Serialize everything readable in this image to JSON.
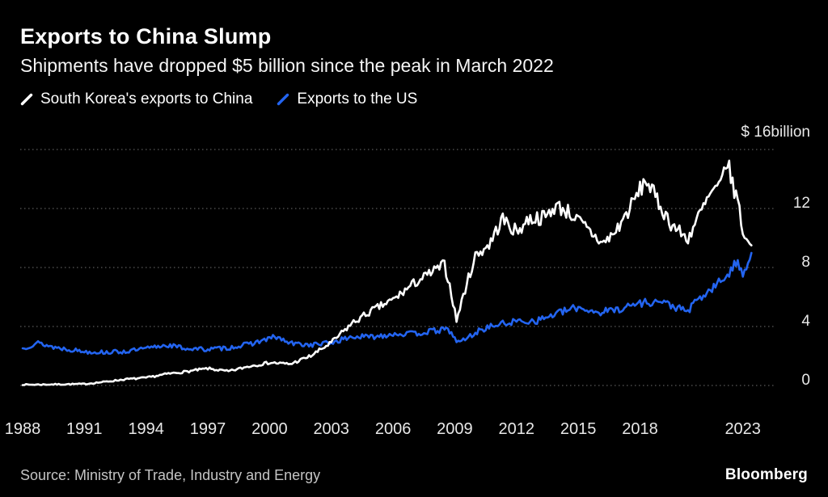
{
  "header": {
    "title": "Exports to China Slump",
    "subtitle": "Shipments have dropped $5 billion since the peak in March 2022"
  },
  "legend": [
    {
      "label": "South Korea's exports to China",
      "color": "#ffffff"
    },
    {
      "label": "Exports to the US",
      "color": "#2364f0"
    }
  ],
  "footer": {
    "source": "Source: Ministry of Trade, Industry and Energy",
    "brand": "Bloomberg"
  },
  "chart_data": {
    "type": "line",
    "title": "Exports to China Slump",
    "subtitle": "Shipments have dropped $5 billion since the peak in March 2022",
    "unit": "$ billion",
    "y_axis_side": "right",
    "grid": "dotted-horizontal",
    "legend_position": "top-left",
    "background": "#000000",
    "ylim": [
      0,
      16
    ],
    "x_range": [
      1988,
      2023.6
    ],
    "y_ticks": [
      {
        "value": 16,
        "label": "$ 16billion"
      },
      {
        "value": 12,
        "label": "12"
      },
      {
        "value": 8,
        "label": "8"
      },
      {
        "value": 4,
        "label": "4"
      },
      {
        "value": 0,
        "label": "0"
      }
    ],
    "x_ticks": [
      {
        "value": 1988,
        "label": "1988"
      },
      {
        "value": 1991,
        "label": "1991"
      },
      {
        "value": 1994,
        "label": "1994"
      },
      {
        "value": 1997,
        "label": "1997"
      },
      {
        "value": 2000,
        "label": "2000"
      },
      {
        "value": 2003,
        "label": "2003"
      },
      {
        "value": 2006,
        "label": "2006"
      },
      {
        "value": 2009,
        "label": "2009"
      },
      {
        "value": 2012,
        "label": "2012"
      },
      {
        "value": 2015,
        "label": "2015"
      },
      {
        "value": 2018,
        "label": "2018"
      },
      {
        "value": 2023,
        "label": "2023"
      }
    ],
    "series": [
      {
        "name": "South Korea's exports to China",
        "color": "#ffffff",
        "points": [
          [
            1988,
            0.05
          ],
          [
            1990,
            0.08
          ],
          [
            1991,
            0.1
          ],
          [
            1992,
            0.25
          ],
          [
            1993,
            0.42
          ],
          [
            1994,
            0.52
          ],
          [
            1995,
            0.78
          ],
          [
            1996,
            0.95
          ],
          [
            1997,
            1.15
          ],
          [
            1998,
            0.95
          ],
          [
            1999,
            1.3
          ],
          [
            2000,
            1.55
          ],
          [
            2001,
            1.45
          ],
          [
            2002,
            2.0
          ],
          [
            2003,
            2.9
          ],
          [
            2004,
            4.2
          ],
          [
            2005,
            5.1
          ],
          [
            2006,
            5.8
          ],
          [
            2007,
            6.9
          ],
          [
            2008.5,
            8.2
          ],
          [
            2008.83,
            6.3
          ],
          [
            2009.08,
            4.4
          ],
          [
            2009.5,
            6.5
          ],
          [
            2010,
            8.8
          ],
          [
            2010.7,
            9.6
          ],
          [
            2011.3,
            11.3
          ],
          [
            2012,
            10.4
          ],
          [
            2012.6,
            11.3
          ],
          [
            2013.4,
            11.4
          ],
          [
            2013.9,
            12.2
          ],
          [
            2014.5,
            11.8
          ],
          [
            2015.2,
            10.9
          ],
          [
            2016.2,
            9.6
          ],
          [
            2016.8,
            10.4
          ],
          [
            2017.5,
            12.0
          ],
          [
            2018.3,
            14.0
          ],
          [
            2018.8,
            12.6
          ],
          [
            2019.5,
            11.0
          ],
          [
            2020.3,
            9.9
          ],
          [
            2020.9,
            11.6
          ],
          [
            2021.5,
            13.1
          ],
          [
            2021.9,
            13.4
          ],
          [
            2022.2,
            15.4
          ],
          [
            2022.5,
            13.6
          ],
          [
            2022.75,
            12.6
          ],
          [
            2022.95,
            10.8
          ],
          [
            2023.2,
            9.6
          ],
          [
            2023.45,
            9.9
          ]
        ]
      },
      {
        "name": "Exports to the US",
        "color": "#2364f0",
        "points": [
          [
            1988,
            2.5
          ],
          [
            1988.7,
            2.9
          ],
          [
            1989.5,
            2.6
          ],
          [
            1990,
            2.5
          ],
          [
            1991,
            2.3
          ],
          [
            1992,
            2.25
          ],
          [
            1993,
            2.3
          ],
          [
            1994,
            2.5
          ],
          [
            1995,
            2.75
          ],
          [
            1996,
            2.5
          ],
          [
            1997,
            2.45
          ],
          [
            1998,
            2.55
          ],
          [
            1999,
            2.8
          ],
          [
            2000.3,
            3.3
          ],
          [
            2001,
            2.85
          ],
          [
            2002,
            2.75
          ],
          [
            2003,
            2.9
          ],
          [
            2004,
            3.3
          ],
          [
            2005,
            3.3
          ],
          [
            2006,
            3.5
          ],
          [
            2007,
            3.5
          ],
          [
            2008,
            3.7
          ],
          [
            2008.7,
            3.8
          ],
          [
            2009.15,
            2.9
          ],
          [
            2009.7,
            3.3
          ],
          [
            2010.3,
            3.8
          ],
          [
            2011,
            4.1
          ],
          [
            2012,
            4.35
          ],
          [
            2013,
            4.4
          ],
          [
            2014,
            4.9
          ],
          [
            2015,
            5.3
          ],
          [
            2016,
            4.95
          ],
          [
            2017,
            5.2
          ],
          [
            2018,
            5.6
          ],
          [
            2019,
            5.7
          ],
          [
            2020.3,
            5.0
          ],
          [
            2020.8,
            5.8
          ],
          [
            2021.3,
            6.3
          ],
          [
            2021.8,
            6.9
          ],
          [
            2022.3,
            7.6
          ],
          [
            2022.7,
            8.3
          ],
          [
            2023.0,
            7.7
          ],
          [
            2023.45,
            9.0
          ]
        ]
      }
    ]
  }
}
